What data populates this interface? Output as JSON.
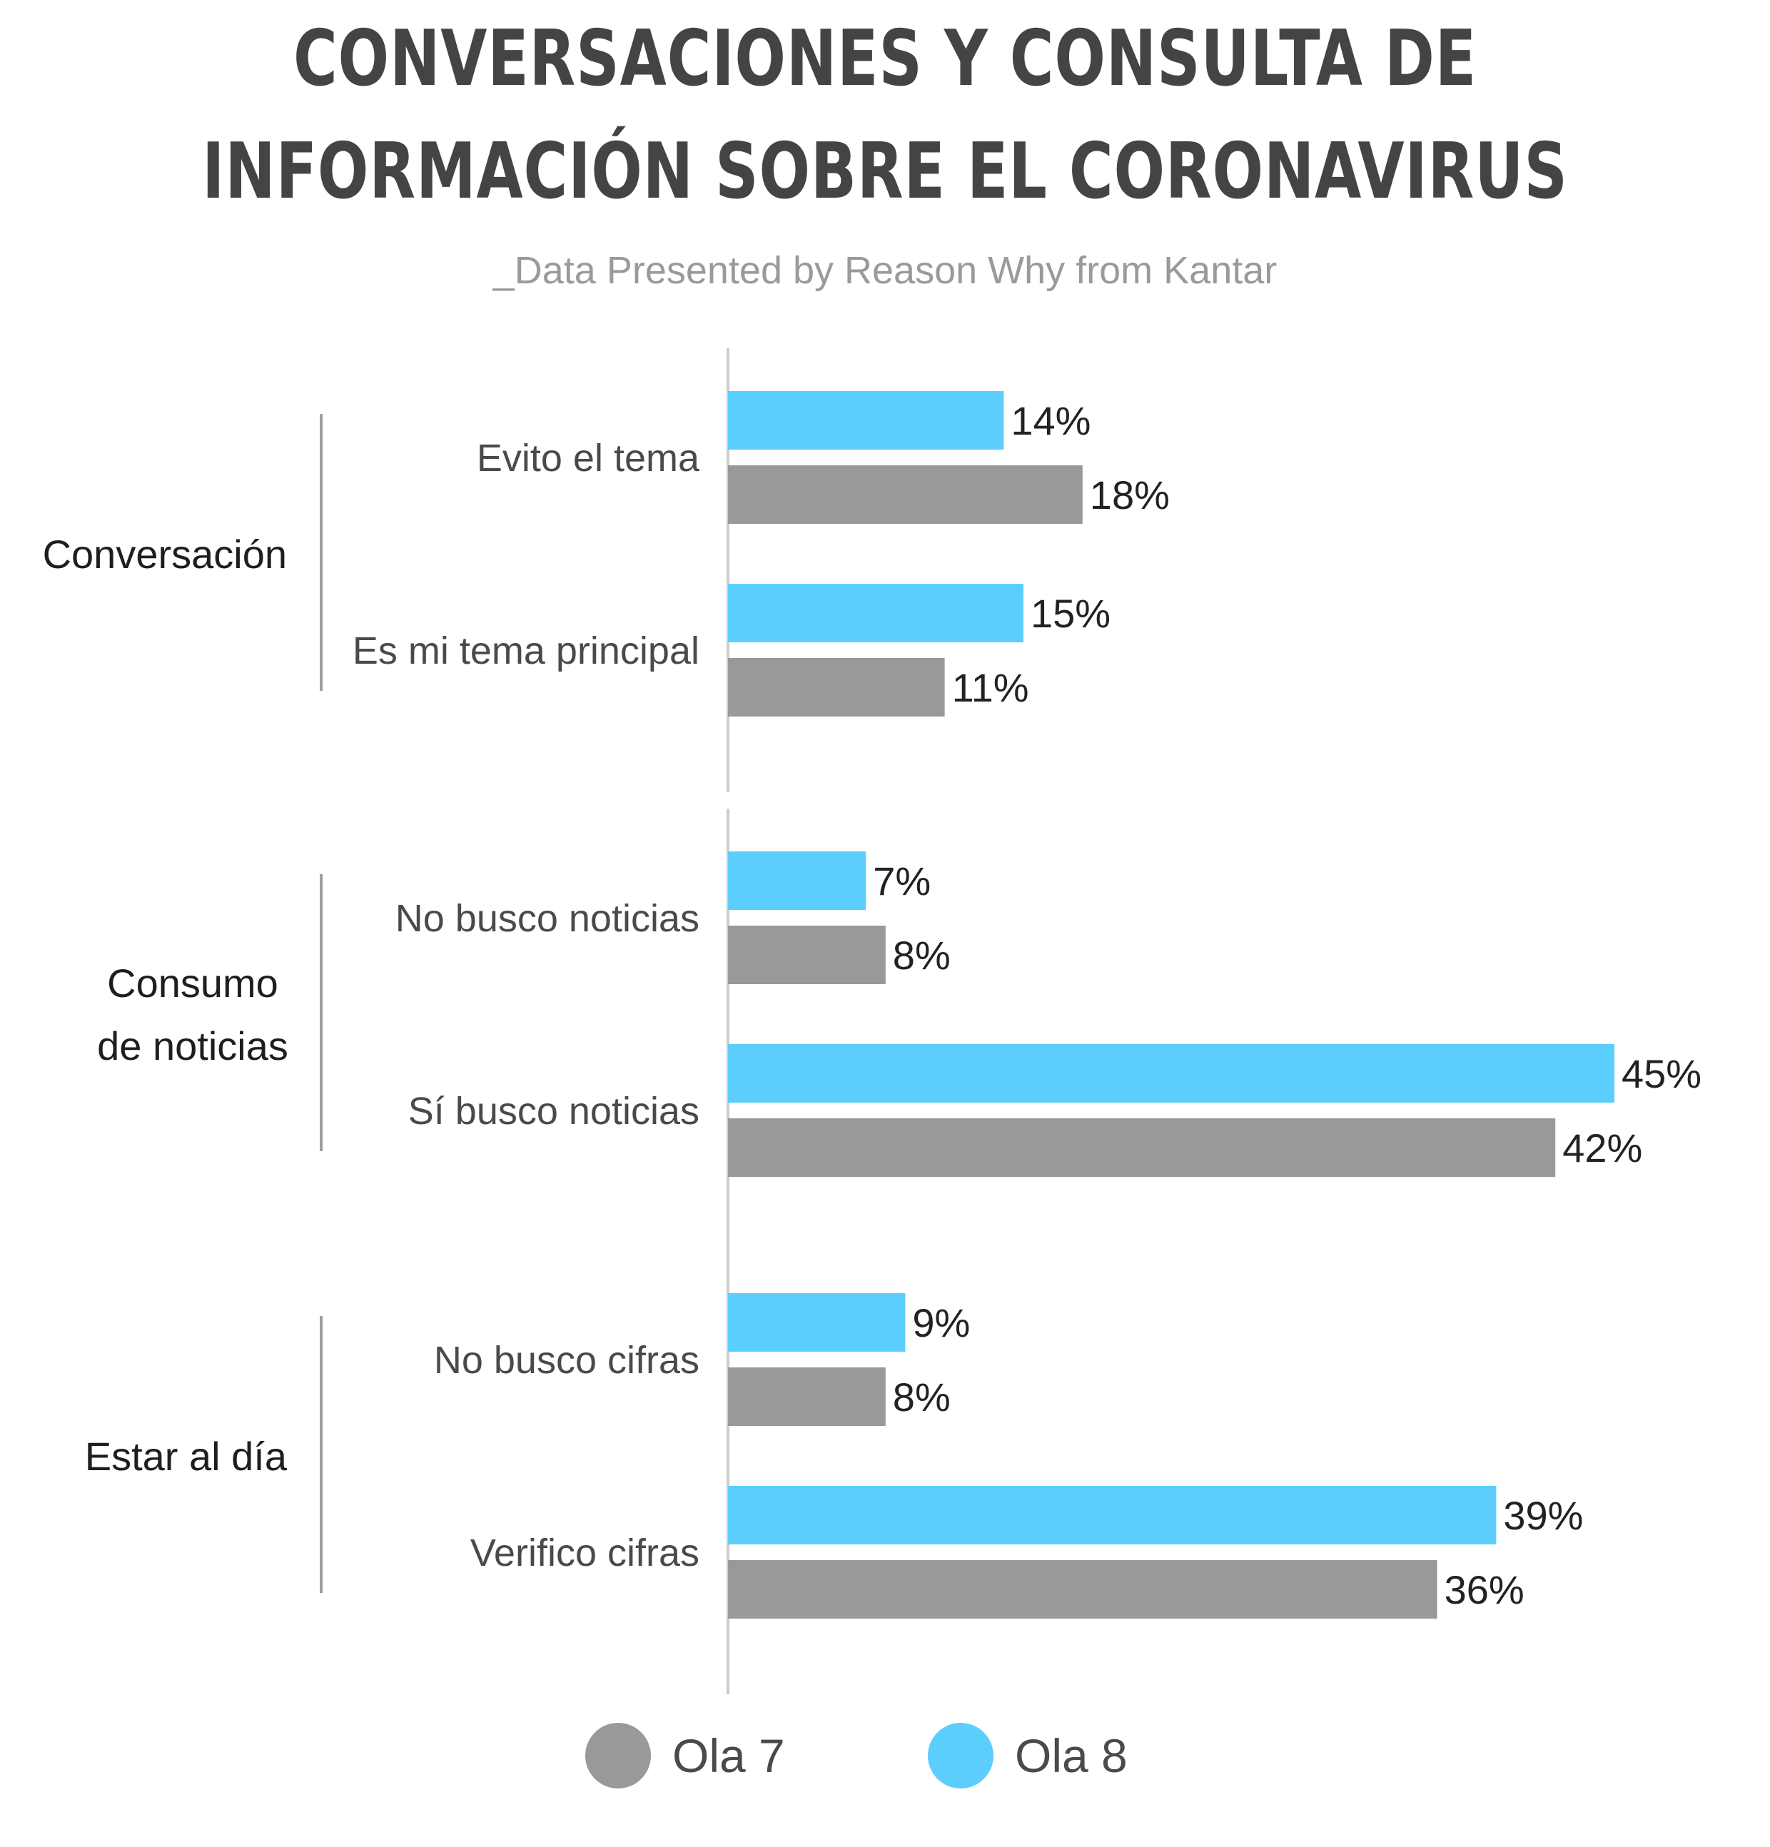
{
  "header": {
    "title_line1": "CONVERSACIONES Y CONSULTA DE",
    "title_line2": "INFORMACIÓN SOBRE EL CORONAVIRUS",
    "subtitle": "_Data Presented by Reason Why from Kantar"
  },
  "colors": {
    "ola7": "#999999",
    "ola8": "#5ccefd",
    "axis": "#cccccc",
    "bracket": "#9e9e9e"
  },
  "chart_data": {
    "type": "bar",
    "orientation": "horizontal",
    "unit": "%",
    "legend_position": "bottom",
    "grid": false,
    "xlim": [
      0,
      45
    ],
    "series": [
      {
        "name": "Ola 8",
        "color": "#5ccefd"
      },
      {
        "name": "Ola 7",
        "color": "#999999"
      }
    ],
    "groups": [
      {
        "label": [
          "Conversación"
        ],
        "categories": [
          {
            "label": "Evito el tema",
            "values": {
              "Ola 8": 14,
              "Ola 7": 18
            }
          },
          {
            "label": "Es mi tema principal",
            "values": {
              "Ola 8": 15,
              "Ola 7": 11
            }
          }
        ]
      },
      {
        "label": [
          "Consumo",
          "de noticias"
        ],
        "categories": [
          {
            "label": "No busco noticias",
            "values": {
              "Ola 8": 7,
              "Ola 7": 8
            }
          },
          {
            "label": "Sí busco noticias",
            "values": {
              "Ola 8": 45,
              "Ola 7": 42
            }
          }
        ]
      },
      {
        "label": [
          "Estar al día"
        ],
        "categories": [
          {
            "label": "No busco cifras",
            "values": {
              "Ola 8": 9,
              "Ola 7": 8
            }
          },
          {
            "label": "Verifico cifras",
            "values": {
              "Ola 8": 39,
              "Ola 7": 36
            }
          }
        ]
      }
    ]
  },
  "legend": {
    "items": [
      {
        "label": "Ola 7",
        "color": "#999999"
      },
      {
        "label": "Ola 8",
        "color": "#5ccefd"
      }
    ]
  }
}
